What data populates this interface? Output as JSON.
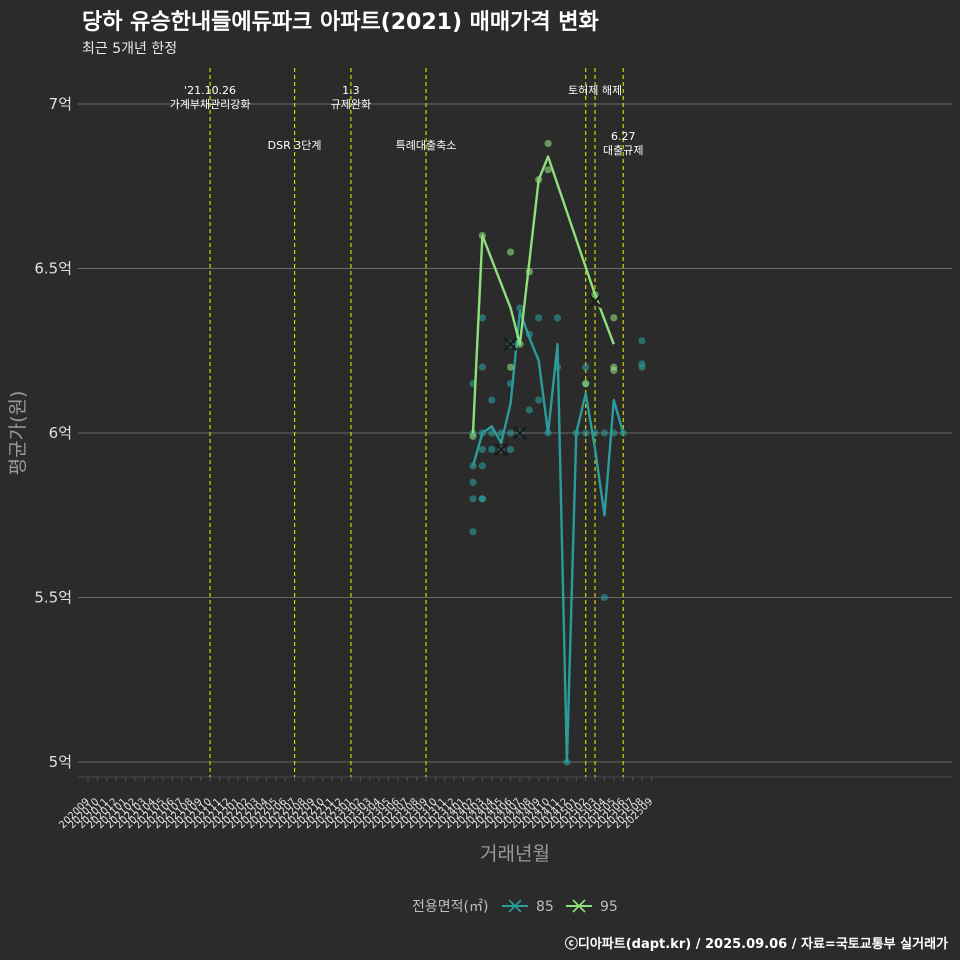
{
  "title": "당하 유승한내들에듀파크 아파트(2021) 매매가격 변화",
  "subtitle": "최근 5개년 한정",
  "caption": "ⓒ디아파트(dapt.kr) / 2025.09.06 / 자료=국토교통부 실거래가",
  "chart_data": {
    "type": "line",
    "xlabel": "거래년월",
    "ylabel": "평균가(원)",
    "ylim": [
      4.9,
      7.1
    ],
    "grid": true,
    "y_ticks": [
      {
        "value": 5,
        "label": "5억"
      },
      {
        "value": 5.5,
        "label": "5.5억"
      },
      {
        "value": 6,
        "label": "6억"
      },
      {
        "value": 6.5,
        "label": "6.5억"
      },
      {
        "value": 7,
        "label": "7억"
      }
    ],
    "categories": [
      "202009",
      "202010",
      "202011",
      "202012",
      "202101",
      "202102",
      "202103",
      "202104",
      "202105",
      "202106",
      "202107",
      "202108",
      "202109",
      "202110",
      "202111",
      "202112",
      "202201",
      "202202",
      "202203",
      "202204",
      "202205",
      "202206",
      "202207",
      "202208",
      "202209",
      "202210",
      "202211",
      "202212",
      "202301",
      "202302",
      "202303",
      "202304",
      "202305",
      "202306",
      "202307",
      "202308",
      "202309",
      "202310",
      "202311",
      "202312",
      "202401",
      "202402",
      "202403",
      "202404",
      "202405",
      "202406",
      "202407",
      "202408",
      "202409",
      "202410",
      "202411",
      "202412",
      "202501",
      "202502",
      "202503",
      "202504",
      "202505",
      "202506",
      "202507",
      "202508",
      "202509"
    ],
    "events": [
      {
        "x": "202110",
        "lines": [
          "'21.10.26",
          "가계부채관리강화"
        ],
        "level": 0
      },
      {
        "x": "202207",
        "lines": [
          "DSR 3단계"
        ],
        "level": 1
      },
      {
        "x": "202301",
        "lines": [
          "1.3",
          "규제완화"
        ],
        "level": 0
      },
      {
        "x": "202309",
        "lines": [
          "특례대출축소"
        ],
        "level": 1
      },
      {
        "x": "202502",
        "lines": [],
        "level": 0
      },
      {
        "x": "202503",
        "lines": [
          "토허제 해제"
        ],
        "level": 0
      },
      {
        "x": "202506",
        "lines": [
          "6.27",
          "대출규제"
        ],
        "level": 2
      }
    ],
    "series": [
      {
        "name": "85",
        "color": "#2a9d9a",
        "line": [
          [
            "202402",
            5.9
          ],
          [
            "202403",
            6.0
          ],
          [
            "202404",
            6.02
          ],
          [
            "202405",
            5.97
          ],
          [
            "202406",
            6.09
          ],
          [
            "202407",
            6.37
          ],
          [
            "202408",
            6.29
          ],
          [
            "202409",
            6.22
          ],
          [
            "202410",
            6.0
          ],
          [
            "202411",
            6.27
          ],
          [
            "202412",
            5.0
          ],
          [
            "202501",
            6.0
          ],
          [
            "202502",
            6.12
          ],
          [
            "202503",
            5.95
          ],
          [
            "202504",
            5.75
          ],
          [
            "202505",
            6.1
          ],
          [
            "202506",
            6.0
          ]
        ],
        "points": [
          [
            "202402",
            5.7
          ],
          [
            "202402",
            5.8
          ],
          [
            "202402",
            5.85
          ],
          [
            "202402",
            5.9
          ],
          [
            "202402",
            6.0
          ],
          [
            "202402",
            6.15
          ],
          [
            "202403",
            5.8
          ],
          [
            "202403",
            5.8
          ],
          [
            "202403",
            5.9
          ],
          [
            "202403",
            5.95
          ],
          [
            "202403",
            6.0
          ],
          [
            "202403",
            6.2
          ],
          [
            "202403",
            6.35
          ],
          [
            "202404",
            5.95
          ],
          [
            "202404",
            6.0
          ],
          [
            "202404",
            6.1
          ],
          [
            "202405",
            5.95
          ],
          [
            "202405",
            6.0
          ],
          [
            "202406",
            5.95
          ],
          [
            "202406",
            6.0
          ],
          [
            "202406",
            6.15
          ],
          [
            "202406",
            6.27
          ],
          [
            "202407",
            6.0
          ],
          [
            "202407",
            6.38
          ],
          [
            "202408",
            6.07
          ],
          [
            "202408",
            6.3
          ],
          [
            "202409",
            6.1
          ],
          [
            "202409",
            6.35
          ],
          [
            "202410",
            6.0
          ],
          [
            "202411",
            6.2
          ],
          [
            "202411",
            6.35
          ],
          [
            "202412",
            5.0
          ],
          [
            "202501",
            6.0
          ],
          [
            "202502",
            6.0
          ],
          [
            "202502",
            6.15
          ],
          [
            "202502",
            6.2
          ],
          [
            "202503",
            6.0
          ],
          [
            "202504",
            5.5
          ],
          [
            "202504",
            6.0
          ],
          [
            "202505",
            6.0
          ],
          [
            "202506",
            6.0
          ],
          [
            "202508",
            6.2
          ],
          [
            "202508",
            6.21
          ],
          [
            "202508",
            6.28
          ]
        ],
        "crosses": [
          [
            "202405",
            5.95
          ],
          [
            "202406",
            6.27
          ],
          [
            "202407",
            6.0
          ]
        ]
      },
      {
        "name": "95",
        "color": "#8ee07a",
        "line": [
          [
            "202402",
            6.0
          ],
          [
            "202403",
            6.6
          ],
          [
            "202406",
            6.38
          ],
          [
            "202407",
            6.27
          ],
          [
            "202409",
            6.77
          ],
          [
            "202410",
            6.84
          ],
          [
            "202503",
            6.42
          ],
          [
            "202505",
            6.27
          ]
        ],
        "points": [
          [
            "202402",
            5.99
          ],
          [
            "202403",
            6.6
          ],
          [
            "202406",
            6.2
          ],
          [
            "202406",
            6.55
          ],
          [
            "202407",
            6.27
          ],
          [
            "202408",
            6.49
          ],
          [
            "202409",
            6.77
          ],
          [
            "202410",
            6.8
          ],
          [
            "202410",
            6.88
          ],
          [
            "202502",
            6.15
          ],
          [
            "202503",
            6.42
          ],
          [
            "202505",
            6.19
          ],
          [
            "202505",
            6.2
          ],
          [
            "202505",
            6.35
          ]
        ],
        "crosses": [
          [
            "202503",
            6.4
          ]
        ]
      }
    ],
    "legend": {
      "title": "전용면적(㎡)",
      "position": "bottom",
      "items": [
        "85",
        "95"
      ]
    }
  }
}
